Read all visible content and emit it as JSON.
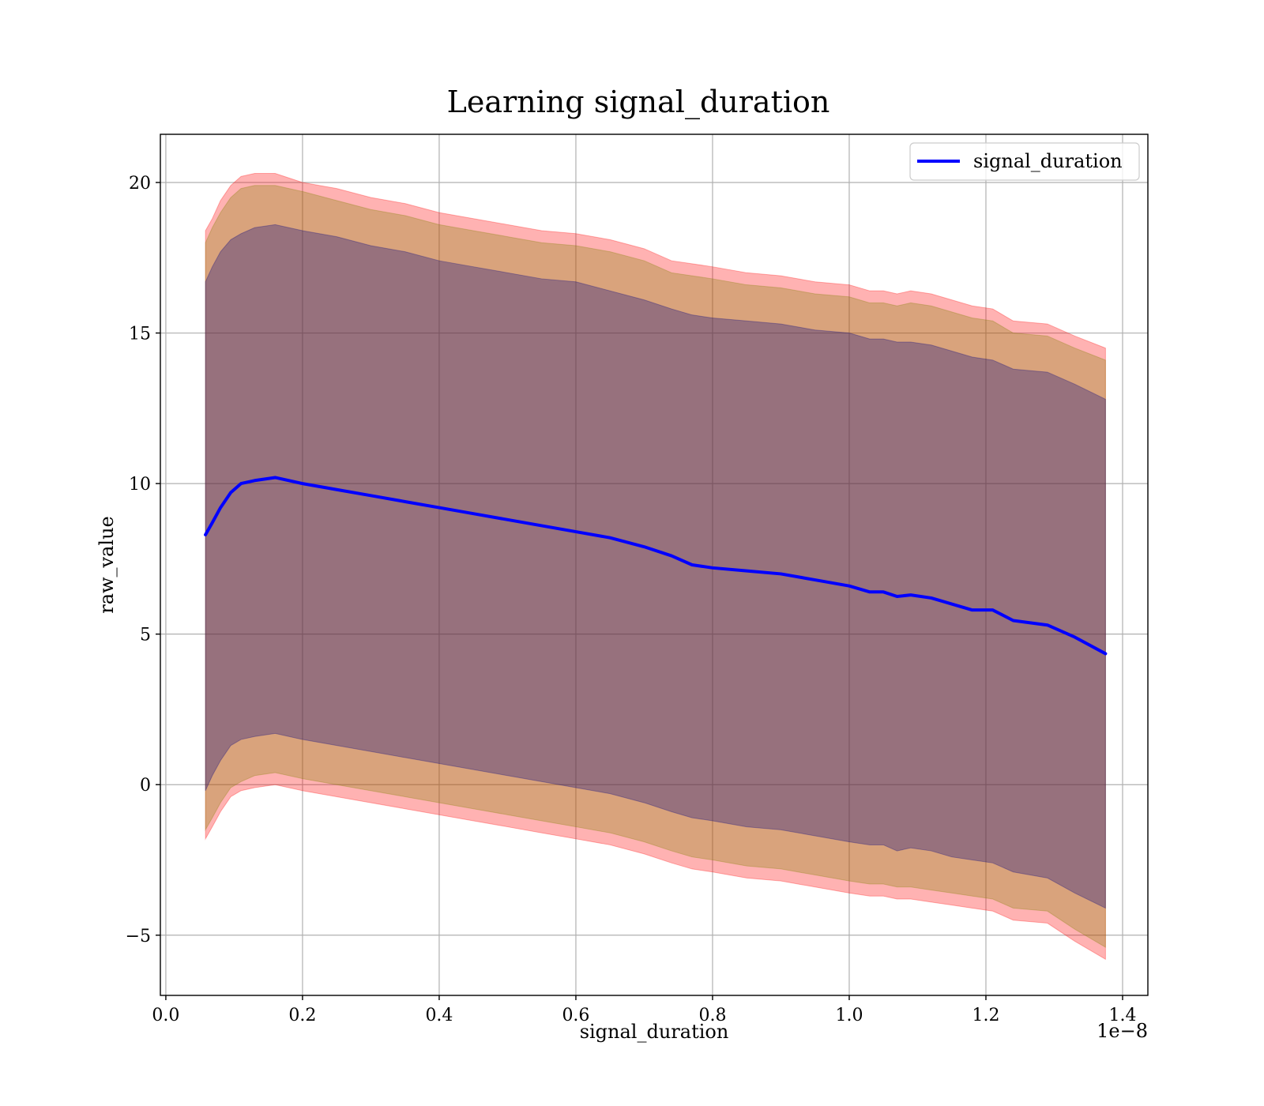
{
  "chart_data": {
    "type": "line",
    "title": "Learning signal_duration",
    "xlabel": "signal_duration",
    "ylabel": "raw_value",
    "x_offset_label": "1e−8",
    "x_scale_exponent": -8,
    "xlim": [
      -0.008,
      1.437
    ],
    "ylim": [
      -7.0,
      21.6
    ],
    "x_ticks": [
      0.0,
      0.2,
      0.4,
      0.6,
      0.8,
      1.0,
      1.2,
      1.4
    ],
    "x_tick_labels": [
      "0.0",
      "0.2",
      "0.4",
      "0.6",
      "0.8",
      "1.0",
      "1.2",
      "1.4"
    ],
    "y_ticks": [
      -5,
      0,
      5,
      10,
      15,
      20
    ],
    "y_tick_labels": [
      "−5",
      "0",
      "5",
      "10",
      "15",
      "20"
    ],
    "grid": true,
    "legend_position": "top-right",
    "x": [
      0.058,
      0.068,
      0.08,
      0.095,
      0.11,
      0.13,
      0.16,
      0.2,
      0.25,
      0.3,
      0.35,
      0.4,
      0.45,
      0.5,
      0.55,
      0.6,
      0.65,
      0.7,
      0.74,
      0.77,
      0.8,
      0.85,
      0.9,
      0.95,
      1.0,
      1.03,
      1.05,
      1.07,
      1.09,
      1.12,
      1.15,
      1.18,
      1.21,
      1.24,
      1.29,
      1.33,
      1.375
    ],
    "series": [
      {
        "name": "signal_duration",
        "color": "#0000ff",
        "values": [
          8.3,
          8.7,
          9.2,
          9.7,
          10.0,
          10.1,
          10.2,
          10.0,
          9.8,
          9.6,
          9.4,
          9.2,
          9.0,
          8.8,
          8.6,
          8.4,
          8.2,
          7.9,
          7.6,
          7.3,
          7.2,
          7.1,
          7.0,
          6.8,
          6.6,
          6.4,
          6.4,
          6.25,
          6.3,
          6.2,
          6.0,
          5.8,
          5.8,
          5.45,
          5.3,
          4.9,
          4.35
        ]
      }
    ],
    "bands": [
      {
        "color": "#ff0000",
        "opacity": 0.3,
        "upper": [
          18.4,
          18.8,
          19.4,
          19.9,
          20.2,
          20.3,
          20.3,
          20.0,
          19.8,
          19.5,
          19.3,
          19.0,
          18.8,
          18.6,
          18.4,
          18.3,
          18.1,
          17.8,
          17.4,
          17.3,
          17.2,
          17.0,
          16.9,
          16.7,
          16.6,
          16.4,
          16.4,
          16.3,
          16.4,
          16.3,
          16.1,
          15.9,
          15.8,
          15.4,
          15.3,
          14.9,
          14.5
        ],
        "lower": [
          -1.8,
          -1.4,
          -0.9,
          -0.4,
          -0.2,
          -0.1,
          0.0,
          -0.2,
          -0.4,
          -0.6,
          -0.8,
          -1.0,
          -1.2,
          -1.4,
          -1.6,
          -1.8,
          -2.0,
          -2.3,
          -2.6,
          -2.8,
          -2.9,
          -3.1,
          -3.2,
          -3.4,
          -3.6,
          -3.7,
          -3.7,
          -3.8,
          -3.8,
          -3.9,
          -4.0,
          -4.1,
          -4.2,
          -4.5,
          -4.6,
          -5.2,
          -5.8
        ]
      },
      {
        "color": "#808000",
        "opacity": 0.3,
        "upper": [
          18.0,
          18.5,
          19.0,
          19.5,
          19.8,
          19.9,
          19.9,
          19.7,
          19.4,
          19.1,
          18.9,
          18.6,
          18.4,
          18.2,
          18.0,
          17.9,
          17.7,
          17.4,
          17.0,
          16.9,
          16.8,
          16.6,
          16.5,
          16.3,
          16.2,
          16.0,
          16.0,
          15.9,
          16.0,
          15.9,
          15.7,
          15.5,
          15.4,
          15.0,
          14.9,
          14.5,
          14.1
        ],
        "lower": [
          -1.5,
          -1.1,
          -0.6,
          -0.1,
          0.1,
          0.3,
          0.4,
          0.2,
          0.0,
          -0.2,
          -0.4,
          -0.6,
          -0.8,
          -1.0,
          -1.2,
          -1.4,
          -1.6,
          -1.9,
          -2.2,
          -2.4,
          -2.5,
          -2.7,
          -2.8,
          -3.0,
          -3.2,
          -3.3,
          -3.3,
          -3.4,
          -3.4,
          -3.5,
          -3.6,
          -3.7,
          -3.8,
          -4.1,
          -4.2,
          -4.8,
          -5.4
        ]
      },
      {
        "color": "#000080",
        "opacity": 0.3,
        "upper": [
          16.7,
          17.2,
          17.7,
          18.1,
          18.3,
          18.5,
          18.6,
          18.4,
          18.2,
          17.9,
          17.7,
          17.4,
          17.2,
          17.0,
          16.8,
          16.7,
          16.4,
          16.1,
          15.8,
          15.6,
          15.5,
          15.4,
          15.3,
          15.1,
          15.0,
          14.8,
          14.8,
          14.7,
          14.7,
          14.6,
          14.4,
          14.2,
          14.1,
          13.8,
          13.7,
          13.3,
          12.8
        ],
        "lower": [
          -0.2,
          0.3,
          0.8,
          1.3,
          1.5,
          1.6,
          1.7,
          1.5,
          1.3,
          1.1,
          0.9,
          0.7,
          0.5,
          0.3,
          0.1,
          -0.1,
          -0.3,
          -0.6,
          -0.9,
          -1.1,
          -1.2,
          -1.4,
          -1.5,
          -1.7,
          -1.9,
          -2.0,
          -2.0,
          -2.2,
          -2.1,
          -2.2,
          -2.4,
          -2.5,
          -2.6,
          -2.9,
          -3.1,
          -3.6,
          -4.1
        ]
      }
    ]
  }
}
